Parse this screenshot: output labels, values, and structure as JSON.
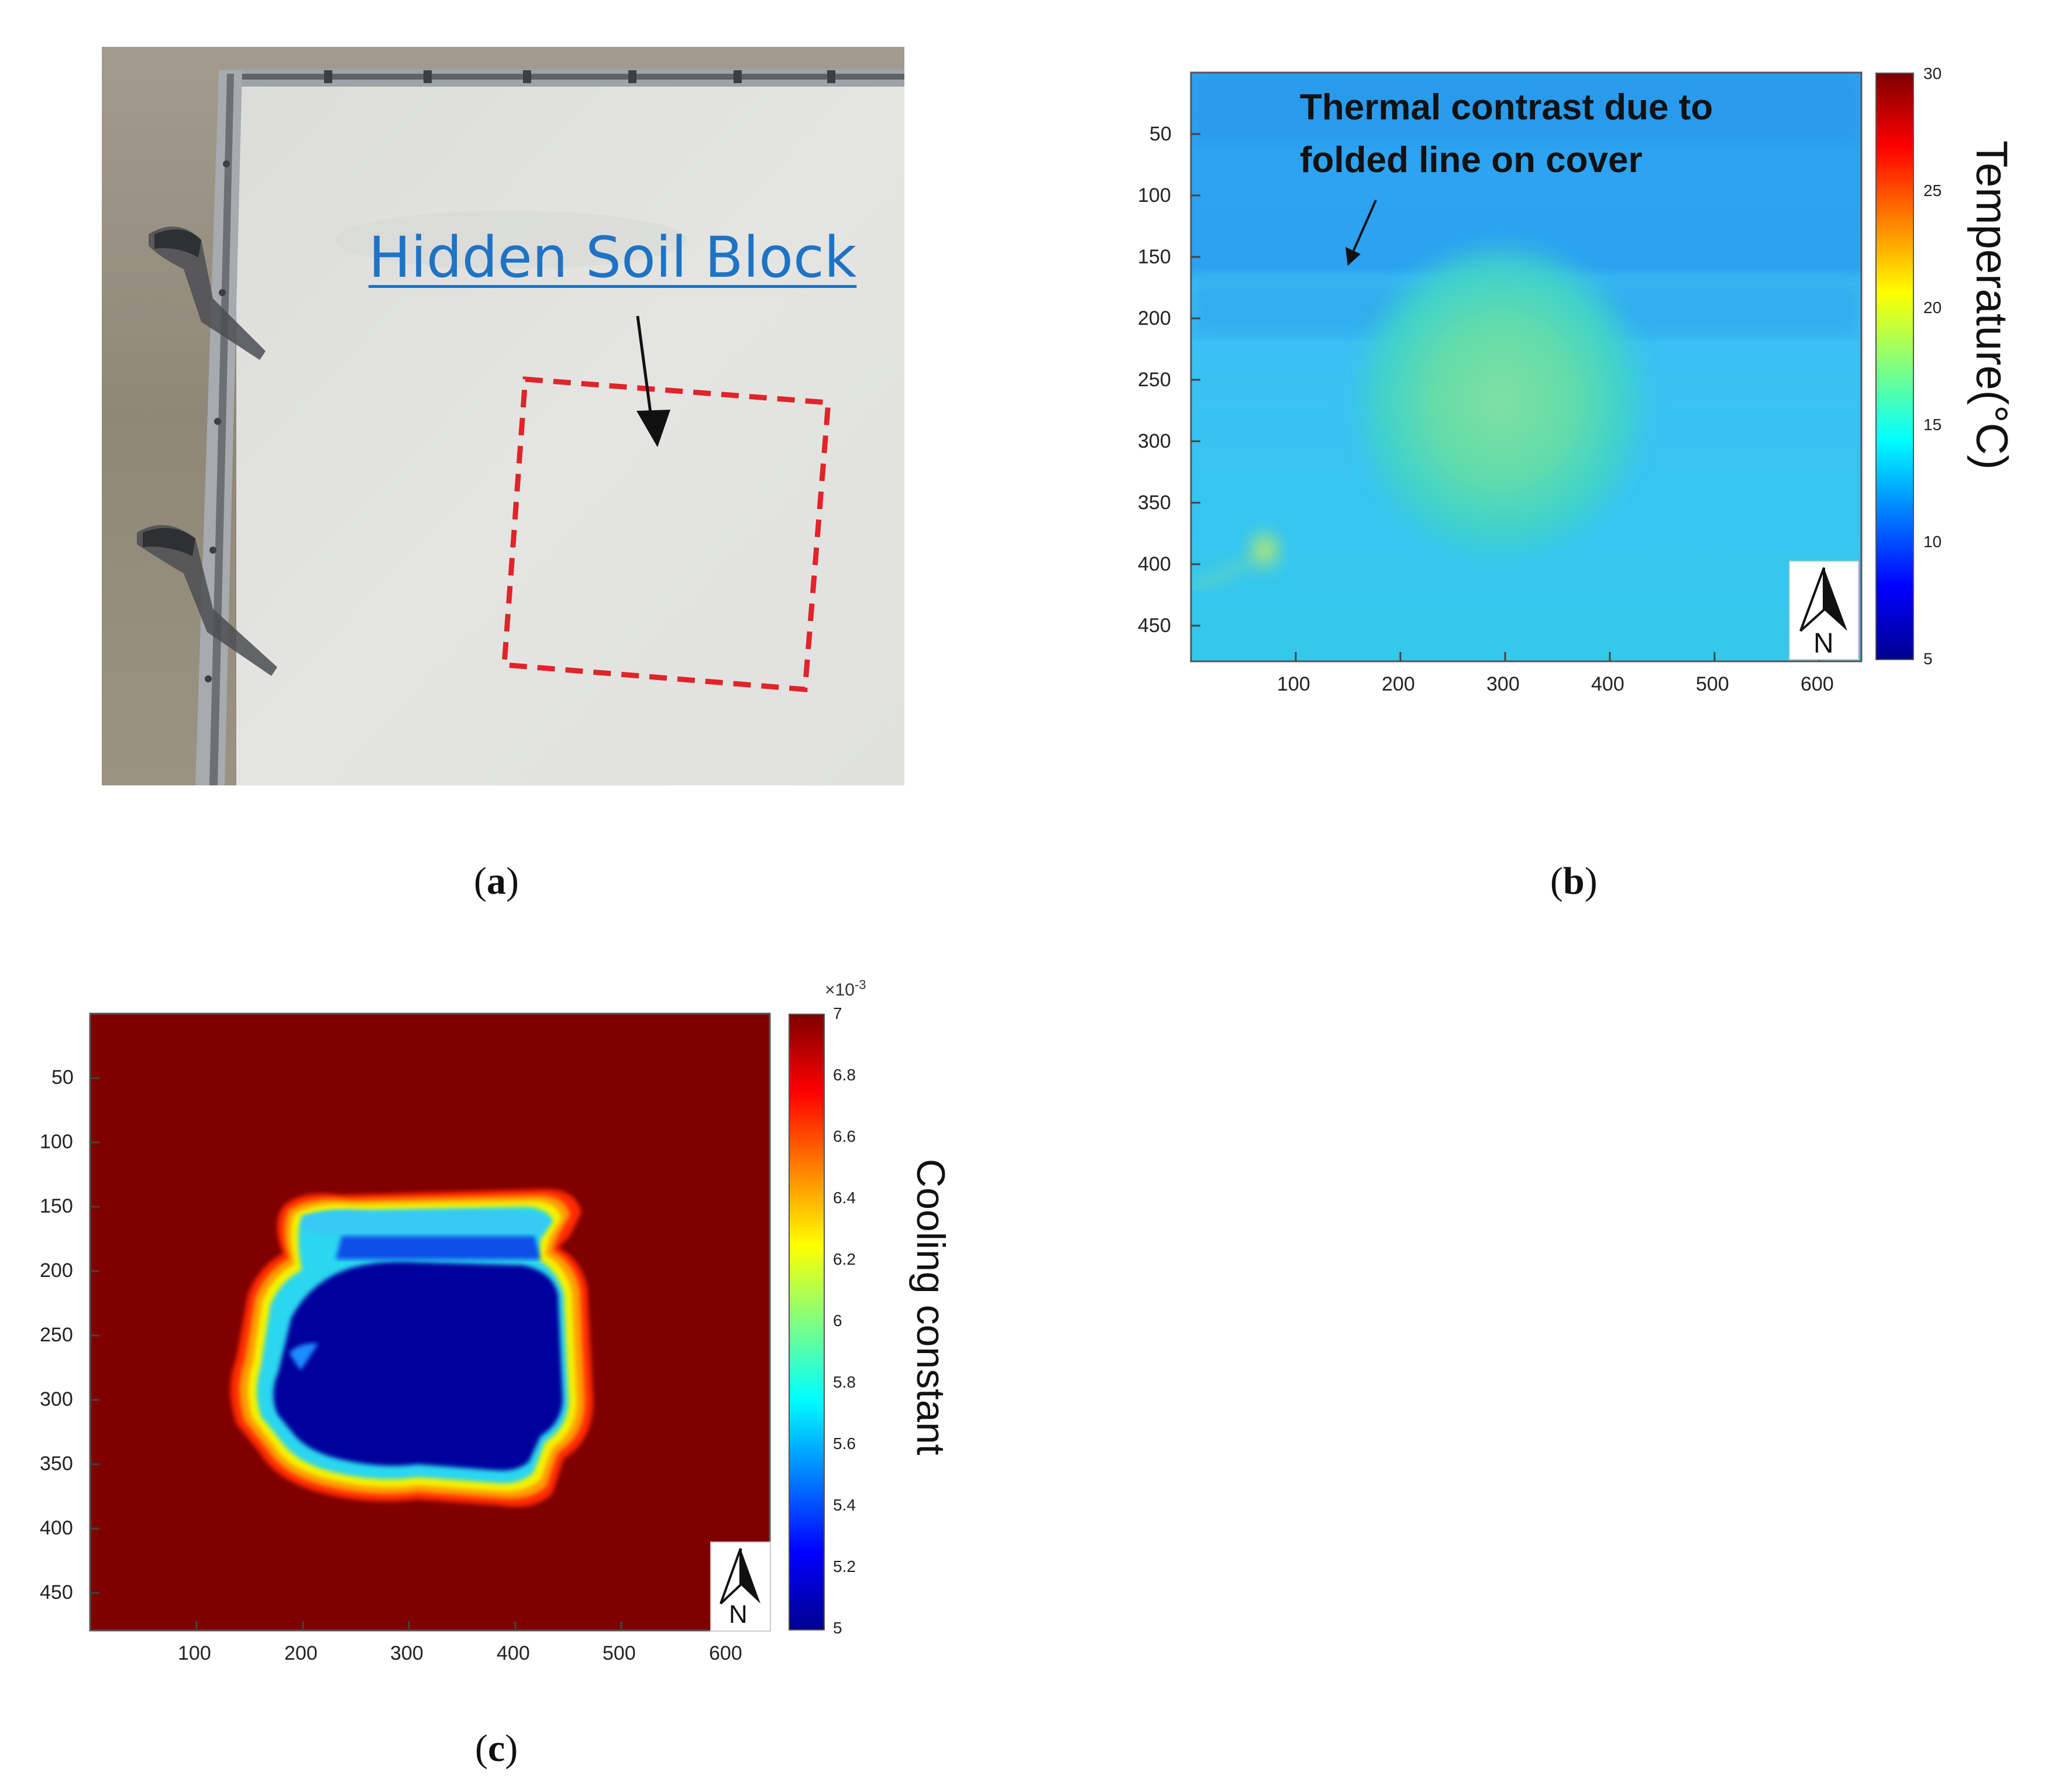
{
  "panel_a": {
    "label_text": "Hidden Soil Block",
    "caption": "(a)",
    "colors": {
      "label": "#1f73c4",
      "box": "#e0242a",
      "cover": "#e3e4e1"
    }
  },
  "panel_b": {
    "annotation_line1": "Thermal contrast due to",
    "annotation_line2": "folded line on cover",
    "caption": "(b)",
    "north_label": "N",
    "colorbar_label": "Temperature(°C)"
  },
  "panel_c": {
    "caption": "(c)",
    "north_label": "N",
    "colorbar_label": "Cooling constant",
    "colorbar_multiplier": "×10",
    "colorbar_exponent": "-3"
  },
  "chart_data": [
    {
      "type": "heatmap",
      "panel": "b",
      "x_ticks": [
        "100",
        "200",
        "300",
        "400",
        "500",
        "600"
      ],
      "y_ticks": [
        "50",
        "100",
        "150",
        "200",
        "250",
        "300",
        "350",
        "400",
        "450"
      ],
      "xlim": [
        0,
        640
      ],
      "ylim": [
        480,
        0
      ],
      "colorbar": {
        "label": "Temperature(°C)",
        "range": [
          5,
          30
        ],
        "ticks": [
          "30",
          "25",
          "20",
          "15",
          "10",
          "5"
        ],
        "colormap": "jet"
      }
    },
    {
      "type": "heatmap",
      "panel": "c",
      "x_ticks": [
        "100",
        "200",
        "300",
        "400",
        "500",
        "600"
      ],
      "y_ticks": [
        "50",
        "100",
        "150",
        "200",
        "250",
        "300",
        "350",
        "400",
        "450"
      ],
      "xlim": [
        0,
        640
      ],
      "ylim": [
        480,
        0
      ],
      "colorbar": {
        "label": "Cooling constant",
        "range": [
          5,
          7
        ],
        "scale": "×10^-3",
        "ticks": [
          "7",
          "6.8",
          "6.6",
          "6.4",
          "6.2",
          "6",
          "5.8",
          "5.6",
          "5.4",
          "5.2",
          "5"
        ],
        "colormap": "jet"
      }
    }
  ]
}
